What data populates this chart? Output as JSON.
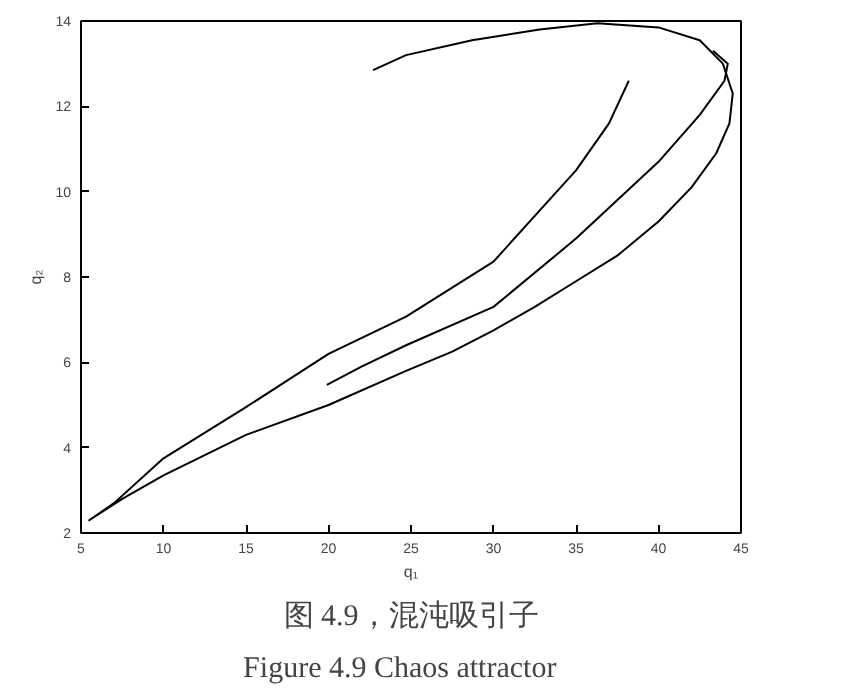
{
  "chart_data": {
    "type": "line",
    "xlabel": "q₁",
    "ylabel": "q₂",
    "xlim": [
      5,
      45
    ],
    "ylim": [
      2,
      14
    ],
    "xticks": [
      5,
      10,
      15,
      20,
      25,
      30,
      35,
      40,
      45
    ],
    "yticks": [
      2,
      4,
      6,
      8,
      10,
      12,
      14
    ],
    "grid": false,
    "marker": "none",
    "line_style": "solid",
    "series": [
      {
        "color": "#000000",
        "x": [
          22.7,
          24.7,
          28.7,
          32.8,
          36.3,
          40,
          42.5,
          43.9,
          44.5,
          44.3,
          43.5,
          42,
          40,
          37.5,
          35,
          32.5,
          30,
          27.5,
          24.7,
          20,
          15,
          10,
          7.5,
          5.5,
          7,
          10,
          15,
          20,
          24.7,
          30,
          35,
          37,
          38.2
        ],
        "values": [
          12.85,
          13.2,
          13.55,
          13.8,
          13.95,
          13.85,
          13.55,
          13.0,
          12.3,
          11.6,
          10.9,
          10.1,
          9.3,
          8.5,
          7.9,
          7.3,
          6.75,
          6.25,
          5.8,
          5.0,
          4.3,
          3.35,
          2.8,
          2.3,
          2.7,
          3.75,
          4.95,
          6.2,
          7.07,
          8.36,
          10.5,
          11.6,
          12.6
        ]
      },
      {
        "color": "#000000",
        "x": [
          19.9,
          22,
          24.7,
          30,
          35,
          40,
          42.5,
          44,
          44.2,
          43.3
        ],
        "values": [
          5.47,
          5.9,
          6.4,
          7.3,
          8.9,
          10.7,
          11.8,
          12.6,
          13.0,
          13.3
        ]
      }
    ],
    "annotations": [
      "图 4.9，混沌吸引子",
      "Figure 4.9    Chaos attractor"
    ]
  }
}
